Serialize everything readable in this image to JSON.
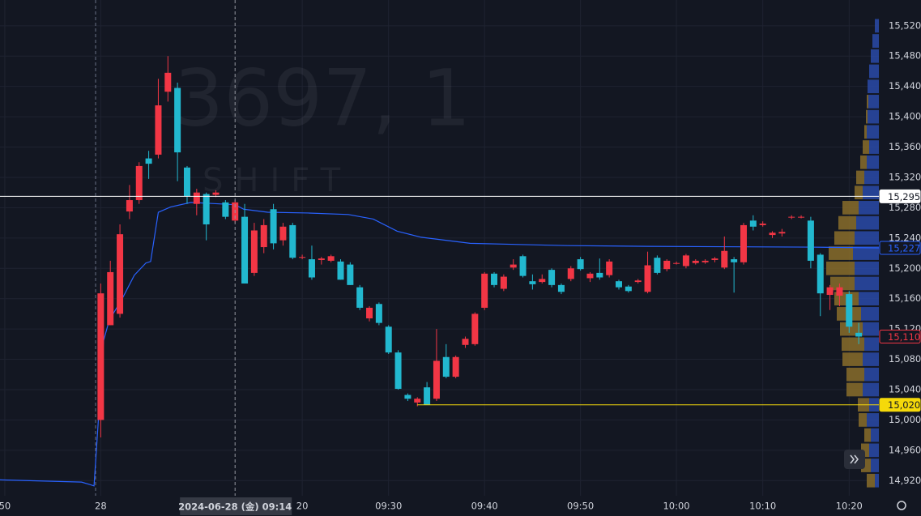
{
  "chart_data": {
    "type": "candlestick",
    "watermark": "3697, 1",
    "watermark_sub": "SHIFT",
    "up_color": "#f23645",
    "down_color": "#22b8cf",
    "grid": true,
    "xlim": [
      -10.5,
      81.1
    ],
    "ylim": [
      14900,
      15554
    ],
    "xticks": [
      {
        "value": -10,
        "label": "50"
      },
      {
        "value": 0,
        "label": "28"
      },
      {
        "value": 21,
        "label": "20"
      },
      {
        "value": 30,
        "label": "09:30"
      },
      {
        "value": 40,
        "label": "09:40"
      },
      {
        "value": 50,
        "label": "09:50"
      },
      {
        "value": 60,
        "label": "10:00"
      },
      {
        "value": 69,
        "label": "10:10"
      },
      {
        "value": 78,
        "label": "10:20"
      }
    ],
    "yticks": [
      {
        "value": 15520,
        "label": "15,520"
      },
      {
        "value": 15480,
        "label": "15,480"
      },
      {
        "value": 15440,
        "label": "15,440"
      },
      {
        "value": 15400,
        "label": "15,400"
      },
      {
        "value": 15360,
        "label": "15,360"
      },
      {
        "value": 15320,
        "label": "15,320"
      },
      {
        "value": 15280,
        "label": "15,280"
      },
      {
        "value": 15240,
        "label": "15,240"
      },
      {
        "value": 15200,
        "label": "15,200"
      },
      {
        "value": 15160,
        "label": "15,160"
      },
      {
        "value": 15120,
        "label": "15,120"
      },
      {
        "value": 15080,
        "label": "15,080"
      },
      {
        "value": 15040,
        "label": "15,040"
      },
      {
        "value": 15000,
        "label": "15,000"
      },
      {
        "value": 14960,
        "label": "14,960"
      },
      {
        "value": 14920,
        "label": "14,920"
      }
    ],
    "x": [
      0,
      1,
      2,
      3,
      4,
      5,
      6,
      7,
      8,
      9,
      10,
      11,
      12,
      13,
      14,
      15,
      16,
      17,
      18,
      19,
      20,
      21,
      22,
      23,
      24,
      25,
      26,
      27,
      28,
      29,
      30,
      31,
      32,
      33,
      34,
      35,
      36,
      37,
      38,
      39,
      40,
      41,
      42,
      43,
      44,
      45,
      46,
      47,
      48,
      49,
      50,
      51,
      52,
      53,
      54,
      55,
      56,
      57,
      58,
      59,
      60,
      61,
      62,
      63,
      64,
      65,
      66,
      67,
      68,
      69,
      70,
      71,
      72,
      73,
      74,
      75,
      76,
      77,
      78,
      79
    ],
    "open": [
      15000,
      15125,
      15140,
      15275,
      15290,
      15345,
      15350,
      15433,
      15438,
      15333,
      15285,
      15298,
      15297,
      15287,
      15263,
      15268,
      15194,
      15228,
      15278,
      15237,
      15257,
      15214,
      15212,
      15211,
      15210,
      15209,
      15205,
      15175,
      15134,
      15153,
      15123,
      15089,
      15033,
      15023,
      15043,
      15028,
      15083,
      15057,
      15099,
      15100,
      15148,
      15193,
      15173,
      15201,
      15216,
      15183,
      15182,
      15198,
      15178,
      15186,
      15212,
      15187,
      15194,
      15191,
      15183,
      15176,
      15182,
      15169,
      15214,
      15199,
      15207,
      15203,
      15207,
      15208,
      15211,
      15201,
      15212,
      15208,
      15263,
      15257,
      15244,
      15246,
      15267,
      15267,
      15263,
      15218,
      15165,
      15164,
      15166,
      15115
    ],
    "high": [
      15180,
      15210,
      15258,
      15310,
      15340,
      15355,
      15450,
      15480,
      15445,
      15335,
      15305,
      15300,
      15303,
      15290,
      15290,
      15285,
      15260,
      15265,
      15285,
      15260,
      15260,
      15218,
      15230,
      15215,
      15218,
      15212,
      15208,
      15178,
      15150,
      15155,
      15125,
      15092,
      15035,
      15030,
      15050,
      15120,
      15100,
      15085,
      15110,
      15142,
      15195,
      15195,
      15192,
      15212,
      15218,
      15192,
      15192,
      15200,
      15180,
      15203,
      15215,
      15195,
      15213,
      15212,
      15185,
      15178,
      15186,
      15222,
      15217,
      15212,
      15209,
      15219,
      15212,
      15212,
      15215,
      15242,
      15215,
      15260,
      15270,
      15262,
      15249,
      15252,
      15270,
      15270,
      15268,
      15220,
      15178,
      15180,
      15170,
      15128
    ],
    "low": [
      14977,
      15125,
      15135,
      15265,
      15285,
      15318,
      15345,
      15420,
      15315,
      15285,
      15270,
      15237,
      15294,
      15265,
      15260,
      15180,
      15190,
      15220,
      15225,
      15230,
      15212,
      15212,
      15185,
      15205,
      15208,
      15185,
      15178,
      15145,
      15130,
      15125,
      15087,
      15040,
      15025,
      15018,
      15020,
      15025,
      15055,
      15055,
      15095,
      15098,
      15145,
      15175,
      15170,
      15198,
      15188,
      15172,
      15180,
      15175,
      15166,
      15183,
      15197,
      15182,
      15185,
      15188,
      15172,
      15168,
      15180,
      15167,
      15192,
      15196,
      15205,
      15200,
      15205,
      15206,
      15208,
      15199,
      15168,
      15205,
      15250,
      15255,
      15240,
      15242,
      15265,
      15266,
      15200,
      15137,
      15145,
      15150,
      15115,
      15100
    ],
    "close": [
      15167,
      15195,
      15245,
      15290,
      15335,
      15338,
      15415,
      15458,
      15353,
      15295,
      15300,
      15258,
      15300,
      15268,
      15287,
      15180,
      15250,
      15257,
      15233,
      15255,
      15214,
      15215,
      15188,
      15213,
      15216,
      15185,
      15178,
      15148,
      15148,
      15128,
      15089,
      15041,
      15028,
      15028,
      15020,
      15078,
      15057,
      15083,
      15107,
      15140,
      15193,
      15178,
      15189,
      15205,
      15190,
      15179,
      15186,
      15178,
      15169,
      15200,
      15199,
      15193,
      15188,
      15209,
      15175,
      15170,
      15184,
      15204,
      15194,
      15210,
      15207,
      15217,
      15210,
      15210,
      15213,
      15223,
      15208,
      15257,
      15255,
      15259,
      15247,
      15248,
      15268,
      15268,
      15210,
      15167,
      15175,
      15175,
      15123,
      15110
    ],
    "series": [
      {
        "color": "#2962ff",
        "x": [
          -10.5,
          -2.0,
          -1.2,
          -0.7,
          0.3,
          0.9,
          2.2,
          3.5,
          4.7,
          5.2,
          6.0,
          7.3,
          9.4,
          14.0,
          14.9,
          17.4,
          21.6,
          25.8,
          28.4,
          30.9,
          33.4,
          38.5,
          48.6,
          57.0,
          73.9,
          81.1
        ],
        "values": [
          14921,
          14918,
          14915,
          14913,
          15105,
          15132,
          15159,
          15191,
          15207,
          15209,
          15274,
          15281,
          15287,
          15284,
          15278,
          15274,
          15273,
          15271,
          15265,
          15249,
          15241,
          15233,
          15230,
          15229,
          15228,
          15227
        ]
      }
    ],
    "price_lines": [
      {
        "value": 15295,
        "label": "15,295",
        "color": "#ffffff"
      },
      {
        "value": 15227,
        "label": "15,227",
        "color": "#2962ff"
      },
      {
        "value": 15110,
        "label": "15,110",
        "color": "#f23645"
      },
      {
        "value": 15020,
        "label": "15,020",
        "color": "#f5d90a"
      }
    ],
    "crosshair": {
      "x": 14,
      "label": "2024-06-28 (金)  09:14"
    },
    "volume_profile": {
      "buy_color": "#2a4aa8",
      "sell_color": "#8a6d2a",
      "levels": [
        14920,
        14940,
        14960,
        14980,
        15000,
        15020,
        15040,
        15060,
        15080,
        15100,
        15120,
        15140,
        15160,
        15180,
        15200,
        15220,
        15240,
        15260,
        15280,
        15300,
        15320,
        15340,
        15360,
        15380,
        15400,
        15420,
        15440,
        15460,
        15480,
        15500,
        15520
      ],
      "buy": [
        5,
        10,
        12,
        10,
        15,
        12,
        20,
        18,
        20,
        18,
        20,
        22,
        25,
        30,
        30,
        32,
        30,
        28,
        25,
        20,
        18,
        15,
        12,
        15,
        14,
        13,
        14,
        12,
        10,
        8,
        5
      ],
      "sell": [
        10,
        12,
        10,
        8,
        10,
        14,
        20,
        22,
        25,
        28,
        28,
        30,
        30,
        30,
        35,
        30,
        25,
        22,
        20,
        10,
        10,
        8,
        8,
        3,
        2,
        2,
        0,
        0,
        0,
        0,
        0
      ]
    }
  }
}
